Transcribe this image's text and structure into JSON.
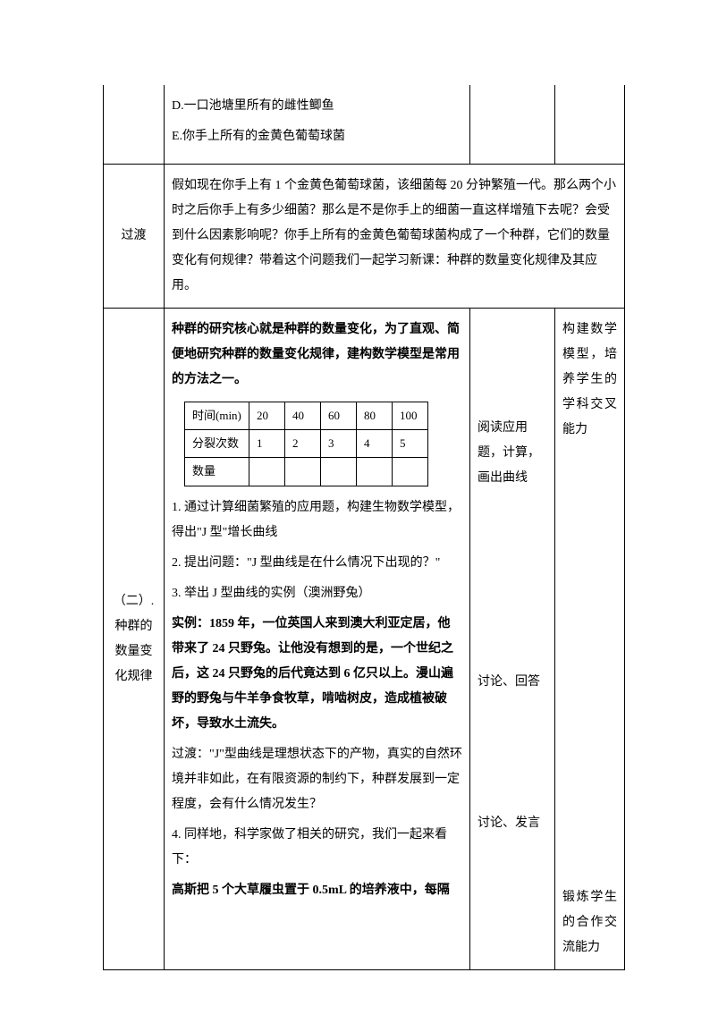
{
  "row1": {
    "text_d": "D.一口池塘里所有的雌性鲫鱼",
    "text_e": "E.你手上所有的金黄色葡萄球菌"
  },
  "row2": {
    "label": "过渡",
    "content": "假如现在你手上有 1 个金黄色葡萄球菌，该细菌每 20 分钟繁殖一代。那么两个小时之后你手上有多少细菌？那么是不是你手上的细菌一直这样增殖下去呢？会受到什么因素影响呢？你手上所有的金黄色葡萄球菌构成了一个种群，它们的数量变化有何规律？带着这个问题我们一起学习新课：种群的数量变化规律及其应用。"
  },
  "row3": {
    "label": "（二）. 种群的数量变化规律",
    "intro_bold": "种群的研究核心就是种群的数量变化，为了直观、简便地研究种群的数量变化规律，建构数学模型是常用的方法之一。",
    "table": {
      "headers": [
        "时间(min)",
        "20",
        "40",
        "60",
        "80",
        "100"
      ],
      "row2": [
        "分裂次数",
        "1",
        "2",
        "3",
        "4",
        "5"
      ],
      "row3_label": "数量"
    },
    "p1": "1. 通过计算细菌繁殖的应用题，构建生物数学模型，得出\"J 型\"增长曲线",
    "p2": "2. 提出问题：\"J 型曲线是在什么情况下出现的？\"",
    "p3": "3. 举出 J 型曲线的实例（澳洲野兔）",
    "example_bold": "实例：1859 年，一位英国人来到澳大利亚定居，他带来了 24 只野兔。让他没有想到的是，一个世纪之后，这 24 只野兔的后代竟达到 6 亿只以上。漫山遍野的野兔与牛羊争食牧草，啃啮树皮，造成植被破坏，导致水土流失。",
    "transition": "过渡：\"J\"型曲线是理想状态下的产物，真实的自然环境并非如此，在有限资源的制约下，种群发展到一定程度，会有什么情况发生？",
    "p4": "4. 同样地，科学家做了相关的研究，我们一起来看下：",
    "gauss_bold": "高斯把 5 个大草履虫置于 0.5mL 的培养液中，每隔",
    "col3_1": "阅读应用题，计算，画出曲线",
    "col3_2": "讨论、回答",
    "col3_3": "讨论、发言",
    "col4_1": "构建数学模型，培养学生的学科交叉能力",
    "col4_2": "锻炼学生的合作交流能力"
  }
}
